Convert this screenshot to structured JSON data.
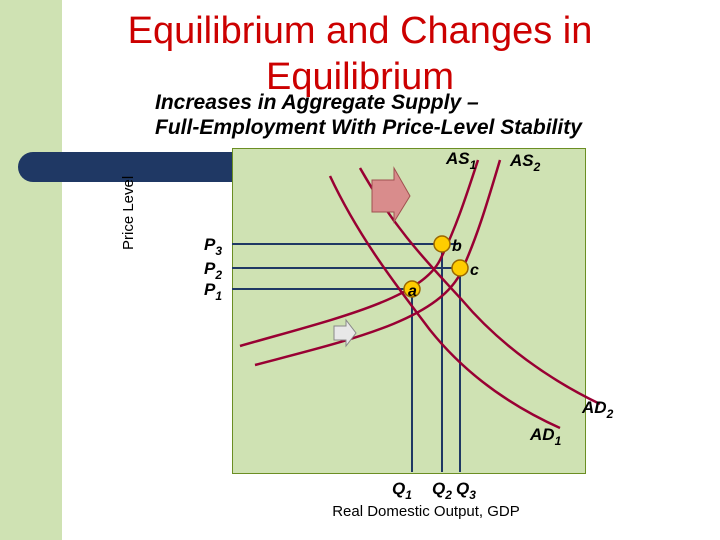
{
  "slide": {
    "title_line1": "Equilibrium and Changes in",
    "title_line2": "Equilibrium",
    "subtitle_line1": "Increases in Aggregate Supply –",
    "subtitle_line2": "Full-Employment With Price-Level Stability"
  },
  "axes": {
    "ylabel": "Price Level",
    "xlabel": "Real Domestic Output, GDP"
  },
  "curves": {
    "as1": {
      "base": "AS",
      "sub": "1"
    },
    "as2": {
      "base": "AS",
      "sub": "2"
    },
    "ad1": {
      "base": "AD",
      "sub": "1"
    },
    "ad2": {
      "base": "AD",
      "sub": "2"
    }
  },
  "prices": [
    {
      "base": "P",
      "sub": "3"
    },
    {
      "base": "P",
      "sub": "2"
    },
    {
      "base": "P",
      "sub": "1"
    }
  ],
  "quantities": [
    {
      "base": "Q",
      "sub": "1"
    },
    {
      "base": "Q",
      "sub": "2"
    },
    {
      "base": "Q",
      "sub": "3"
    }
  ],
  "points": {
    "a": "a",
    "b": "b",
    "c": "c"
  },
  "colors": {
    "title": "#cc0000",
    "curve": "#990033",
    "plot_bg": "#cfe2b3",
    "point_fill": "#ffcc00",
    "arrow": "#d98c8c"
  }
}
